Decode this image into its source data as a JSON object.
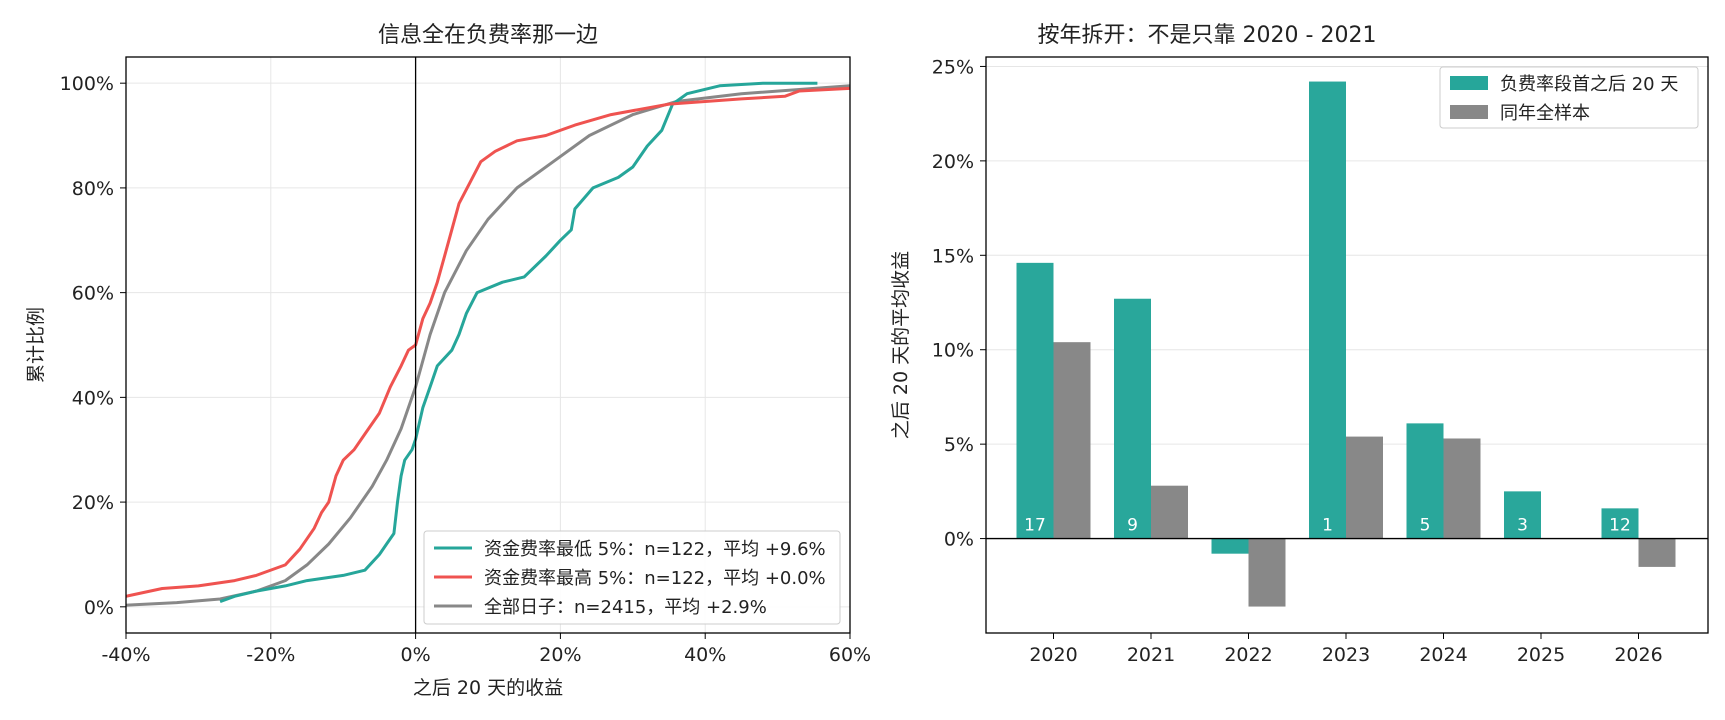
{
  "chart_data": [
    {
      "type": "line",
      "title": "信息全在负费率那一边",
      "xlabel": "之后 20 天的收益",
      "ylabel": "累计比例",
      "xlim": [
        -0.4,
        0.6
      ],
      "ylim": [
        -0.05,
        1.05
      ],
      "xticks": [
        -0.4,
        -0.2,
        0.0,
        0.2,
        0.4,
        0.6
      ],
      "xtick_labels": [
        "-40%",
        "-20%",
        "0%",
        "20%",
        "40%",
        "60%"
      ],
      "yticks": [
        0.0,
        0.2,
        0.4,
        0.6,
        0.8,
        1.0
      ],
      "ytick_labels": [
        "0%",
        "20%",
        "40%",
        "60%",
        "80%",
        "100%"
      ],
      "grid": true,
      "vline_x": 0.0,
      "legend_position": "lower-right",
      "series": [
        {
          "name": "资金费率最低 5%：n=122，平均 +9.6%",
          "color": "#26a69a",
          "points": [
            [
              -0.27,
              0.01
            ],
            [
              -0.25,
              0.02
            ],
            [
              -0.22,
              0.03
            ],
            [
              -0.18,
              0.04
            ],
            [
              -0.15,
              0.05
            ],
            [
              -0.1,
              0.06
            ],
            [
              -0.07,
              0.07
            ],
            [
              -0.05,
              0.1
            ],
            [
              -0.04,
              0.12
            ],
            [
              -0.03,
              0.14
            ],
            [
              -0.025,
              0.2
            ],
            [
              -0.02,
              0.25
            ],
            [
              -0.015,
              0.28
            ],
            [
              -0.005,
              0.3
            ],
            [
              0.0,
              0.32
            ],
            [
              0.01,
              0.38
            ],
            [
              0.02,
              0.42
            ],
            [
              0.03,
              0.46
            ],
            [
              0.05,
              0.49
            ],
            [
              0.06,
              0.52
            ],
            [
              0.07,
              0.56
            ],
            [
              0.085,
              0.6
            ],
            [
              0.12,
              0.62
            ],
            [
              0.15,
              0.63
            ],
            [
              0.18,
              0.67
            ],
            [
              0.2,
              0.7
            ],
            [
              0.215,
              0.72
            ],
            [
              0.22,
              0.76
            ],
            [
              0.245,
              0.8
            ],
            [
              0.28,
              0.82
            ],
            [
              0.3,
              0.84
            ],
            [
              0.32,
              0.88
            ],
            [
              0.34,
              0.91
            ],
            [
              0.355,
              0.96
            ],
            [
              0.375,
              0.98
            ],
            [
              0.42,
              0.995
            ],
            [
              0.48,
              1.0
            ],
            [
              0.555,
              1.0
            ]
          ]
        },
        {
          "name": "资金费率最高 5%：n=122，平均 +0.0%",
          "color": "#ef5350",
          "points": [
            [
              -0.4,
              0.02
            ],
            [
              -0.35,
              0.035
            ],
            [
              -0.3,
              0.04
            ],
            [
              -0.25,
              0.05
            ],
            [
              -0.22,
              0.06
            ],
            [
              -0.18,
              0.08
            ],
            [
              -0.16,
              0.11
            ],
            [
              -0.14,
              0.15
            ],
            [
              -0.13,
              0.18
            ],
            [
              -0.12,
              0.2
            ],
            [
              -0.11,
              0.25
            ],
            [
              -0.1,
              0.28
            ],
            [
              -0.085,
              0.3
            ],
            [
              -0.07,
              0.33
            ],
            [
              -0.05,
              0.37
            ],
            [
              -0.035,
              0.42
            ],
            [
              -0.02,
              0.46
            ],
            [
              -0.01,
              0.49
            ],
            [
              0.0,
              0.5
            ],
            [
              0.01,
              0.55
            ],
            [
              0.02,
              0.58
            ],
            [
              0.03,
              0.62
            ],
            [
              0.04,
              0.67
            ],
            [
              0.05,
              0.72
            ],
            [
              0.06,
              0.77
            ],
            [
              0.075,
              0.81
            ],
            [
              0.09,
              0.85
            ],
            [
              0.11,
              0.87
            ],
            [
              0.14,
              0.89
            ],
            [
              0.18,
              0.9
            ],
            [
              0.22,
              0.92
            ],
            [
              0.27,
              0.94
            ],
            [
              0.35,
              0.96
            ],
            [
              0.45,
              0.97
            ],
            [
              0.51,
              0.975
            ],
            [
              0.53,
              0.985
            ],
            [
              0.6,
              0.99
            ]
          ]
        },
        {
          "name": "全部日子：n=2415，平均 +2.9%",
          "color": "#888888",
          "points": [
            [
              -0.4,
              0.003
            ],
            [
              -0.33,
              0.008
            ],
            [
              -0.27,
              0.015
            ],
            [
              -0.22,
              0.03
            ],
            [
              -0.18,
              0.05
            ],
            [
              -0.15,
              0.08
            ],
            [
              -0.12,
              0.12
            ],
            [
              -0.09,
              0.17
            ],
            [
              -0.06,
              0.23
            ],
            [
              -0.04,
              0.28
            ],
            [
              -0.02,
              0.34
            ],
            [
              0.0,
              0.42
            ],
            [
              0.02,
              0.52
            ],
            [
              0.04,
              0.6
            ],
            [
              0.07,
              0.68
            ],
            [
              0.1,
              0.74
            ],
            [
              0.14,
              0.8
            ],
            [
              0.19,
              0.85
            ],
            [
              0.24,
              0.9
            ],
            [
              0.3,
              0.94
            ],
            [
              0.36,
              0.965
            ],
            [
              0.45,
              0.98
            ],
            [
              0.6,
              0.995
            ]
          ]
        }
      ]
    },
    {
      "type": "bar",
      "title": "按年拆开：不是只靠 2020 - 2021",
      "xlabel": "",
      "ylabel": "之后 20 天的平均收益",
      "categories": [
        "2020",
        "2021",
        "2022",
        "2023",
        "2024",
        "2025",
        "2026"
      ],
      "ylim": [
        -0.05,
        0.255
      ],
      "yticks": [
        0.0,
        0.05,
        0.1,
        0.15,
        0.2,
        0.25
      ],
      "ytick_labels": [
        "0%",
        "5%",
        "10%",
        "15%",
        "20%",
        "25%"
      ],
      "grid": true,
      "legend_position": "top-right",
      "series": [
        {
          "name": "负费率段首之后 20 天",
          "color": "#26a69a",
          "values": [
            0.146,
            0.127,
            -0.008,
            0.242,
            0.061,
            0.025,
            0.016
          ],
          "counts": [
            "17",
            "9",
            "",
            "1",
            "5",
            "3",
            "12"
          ]
        },
        {
          "name": "同年全样本",
          "color": "#888888",
          "values": [
            0.104,
            0.028,
            -0.036,
            0.054,
            0.053,
            null,
            -0.015
          ]
        }
      ]
    }
  ]
}
